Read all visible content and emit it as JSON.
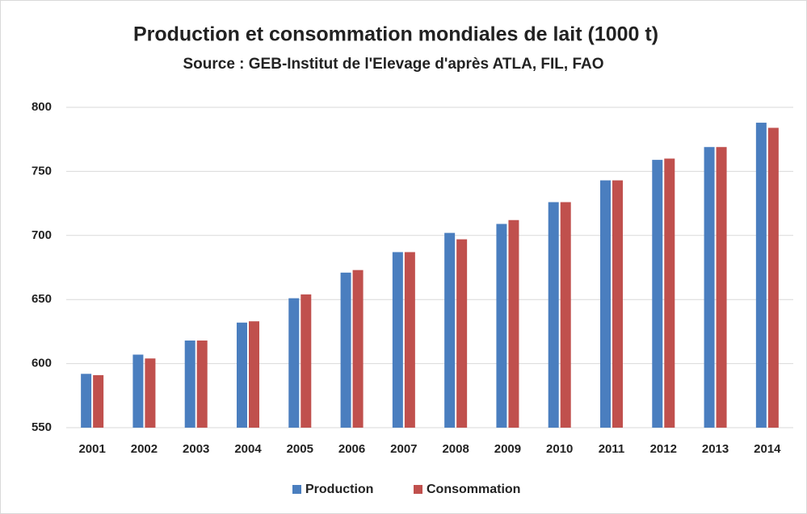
{
  "chart_data": {
    "type": "bar",
    "title": "Production et consommation mondiales de lait (1000 t)",
    "subtitle": "Source : GEB-Institut de l'Elevage d'après ATLA, FIL, FAO",
    "categories": [
      "2001",
      "2002",
      "2003",
      "2004",
      "2005",
      "2006",
      "2007",
      "2008",
      "2009",
      "2010",
      "2011",
      "2012",
      "2013",
      "2014"
    ],
    "series": [
      {
        "name": "Production",
        "color": "#4a7ebf",
        "values": [
          592,
          607,
          618,
          632,
          651,
          671,
          687,
          702,
          709,
          726,
          743,
          759,
          769,
          788
        ]
      },
      {
        "name": "Consommation",
        "color": "#c0504d",
        "values": [
          591,
          604,
          618,
          633,
          654,
          673,
          687,
          697,
          712,
          726,
          743,
          760,
          769,
          784
        ]
      }
    ],
    "ylim": [
      550,
      800
    ],
    "yticks": [
      550,
      600,
      650,
      700,
      750,
      800
    ],
    "grid": true,
    "legend": "bottom"
  }
}
